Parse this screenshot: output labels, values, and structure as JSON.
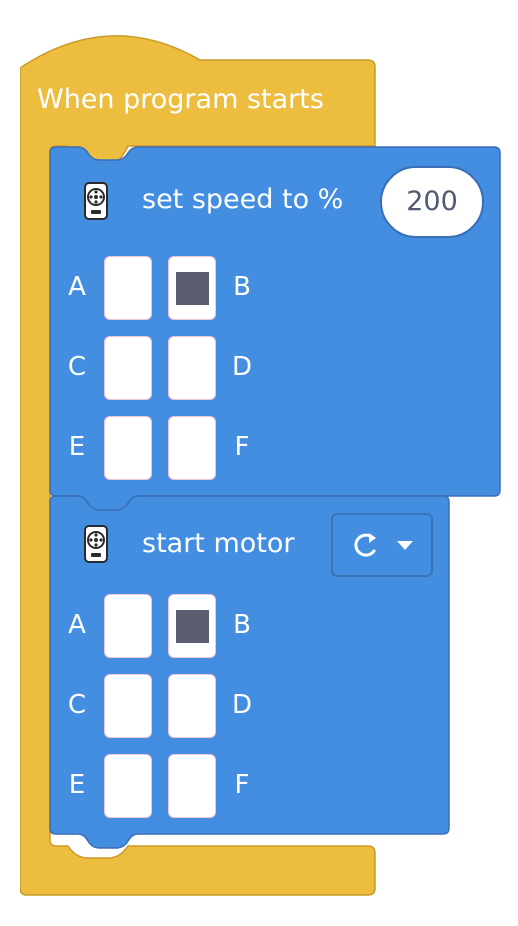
{
  "colors": {
    "event": "#EDBD40",
    "event_border": "#C99B27",
    "motor": "#438EE0",
    "motor_border": "#3A6FB5",
    "check_fill": "#5A5E70"
  },
  "hat": {
    "label": "When program starts"
  },
  "speed_block": {
    "icon": "motor-icon",
    "label": "set speed to %",
    "value": "200",
    "ports": [
      {
        "letter": "A",
        "checked": false
      },
      {
        "letter": "B",
        "checked": true
      },
      {
        "letter": "C",
        "checked": false
      },
      {
        "letter": "D",
        "checked": false
      },
      {
        "letter": "E",
        "checked": false
      },
      {
        "letter": "F",
        "checked": false
      }
    ]
  },
  "start_block": {
    "icon": "motor-icon",
    "label": "start motor",
    "direction_icon": "clockwise-rotate-icon",
    "dropdown_icon": "caret-down-icon",
    "ports": [
      {
        "letter": "A",
        "checked": false
      },
      {
        "letter": "B",
        "checked": true
      },
      {
        "letter": "C",
        "checked": false
      },
      {
        "letter": "D",
        "checked": false
      },
      {
        "letter": "E",
        "checked": false
      },
      {
        "letter": "F",
        "checked": false
      }
    ]
  }
}
